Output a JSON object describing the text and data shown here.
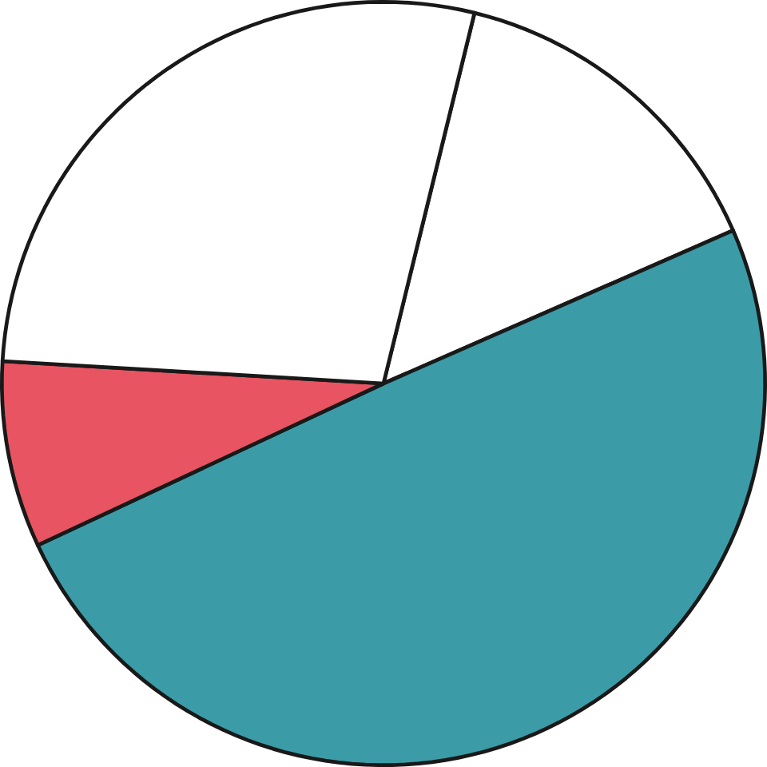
{
  "chart_data": {
    "type": "pie",
    "categories": [
      null,
      null,
      null,
      null
    ],
    "values": [
      14.6,
      49.6,
      7.9,
      27.9
    ],
    "colors": [
      "#ffffff",
      "#3b9ca7",
      "#e85461",
      "#ffffff"
    ]
  }
}
